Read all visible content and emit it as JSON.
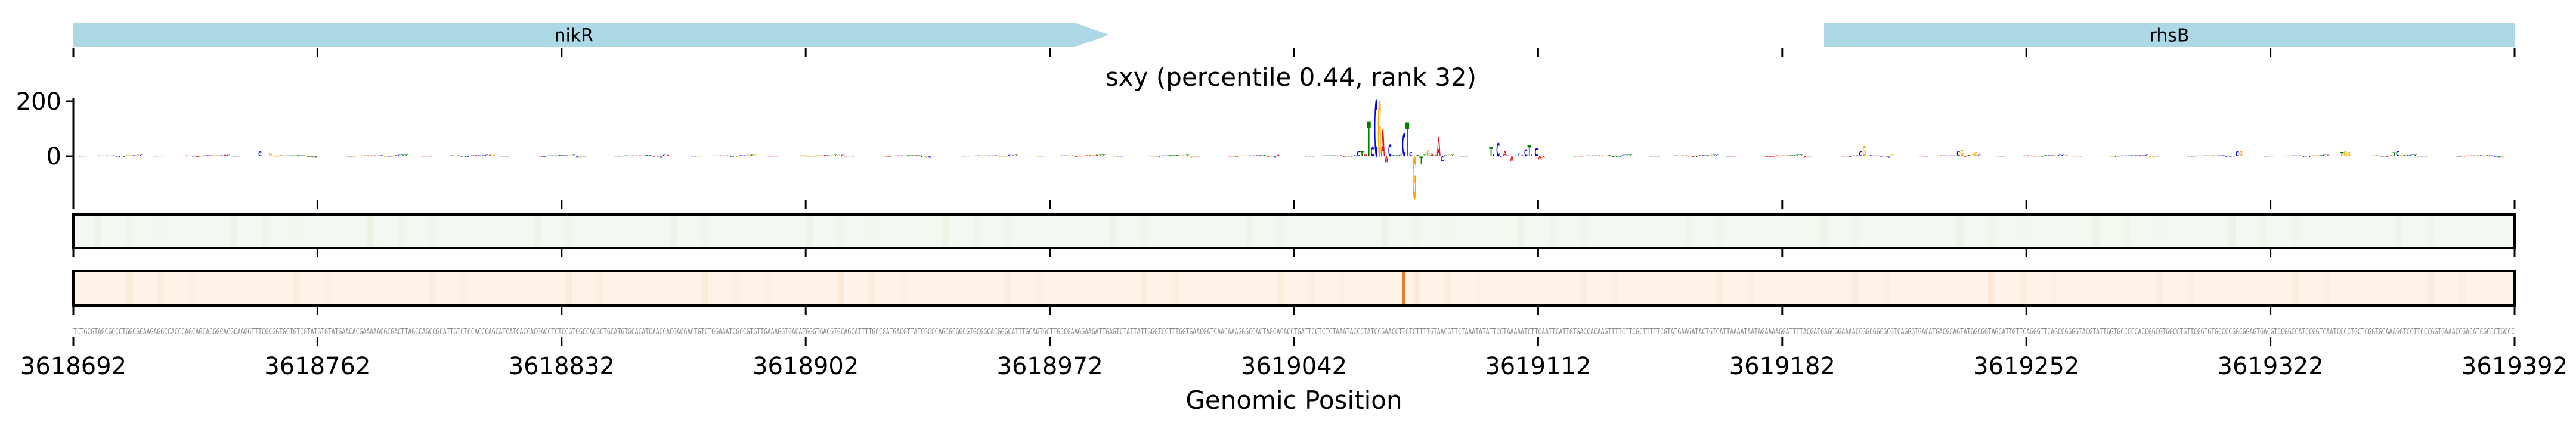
{
  "chart_data": {
    "type": "sequence-logo",
    "title": "sxy (percentile 0.44, rank 32)",
    "xlabel": "Genomic Position",
    "ylabel": "",
    "xlim": [
      3618692,
      3619392
    ],
    "xticks": [
      "3618692",
      "3618762",
      "3618832",
      "3618902",
      "3618972",
      "3619042",
      "3619112",
      "3619182",
      "3619252",
      "3619322",
      "3619392"
    ],
    "xtick_values": [
      3618692,
      3618762,
      3618832,
      3618902,
      3618972,
      3619042,
      3619112,
      3619182,
      3619252,
      3619322,
      3619392
    ],
    "ylim": [
      -160,
      225
    ],
    "yticks": [
      "0",
      "200"
    ],
    "ytick_values": [
      0,
      200
    ],
    "genes": [
      {
        "name": "nikR",
        "start": 3618692,
        "body_end": 3618979,
        "end": 3618989,
        "strand": "+"
      },
      {
        "name": "rhsB",
        "start": 3619194,
        "end": 3619392,
        "strand": ""
      }
    ],
    "base_colors": {
      "A": "#e8141a",
      "C": "#0000f0",
      "G": "#ffa500",
      "T": "#008000"
    },
    "gene_color": "#add8e6",
    "sequence": "TCTGCGTAGCGCCCTGGCGCAAGAGGCCACCCAGCAGCACGGCACGCAAGGTTTCGCGGTGCTGTCGTATGTGTATGAACACGAAAAACGCGACTTAGCCAGCCGCATTGTCTCCACCCAGCATCATCACCACGACCTCTCCGTCGCCACGCTGCATGTGCACATCAACCACGACGACTGTCTGGAAATCGCCGTGTTGAAAGGTGACATGGGTGACGTGCAGCATTTTGCCGATGACGTTATCGCCCAGCGCGGCGTGCGGCACGGGCATTTGCAGTGCTTGCCGAAGGAAGATTGAGTCTATTATTGGGTCCTTTGGTGAACGATCAACAAAGGGCCACTAGCACACCTGATTCCTCTCTAAATACCCTATCCGAACCTTCTCTTTTGTAACGTTCTAAATATATTCCTAAAAATCTTCAATTCATTGTGACCACAAGTTTTCTTCGCTTTTTCGTATGAAGATACTGTCATTAAAATAATAGAAAAGGATTTTACGATGAGCGGAAAACCGGCGGCGCGTCAGGGTGACATGACGCAGTATGGCGGTAGCATTGTTCAGGGTTCAGCCGGGGTACGTATTGGTGCCCCCACCGGCGTGGCCTGTTCGGTGTGCCCCGGCGGAGTGACGTCCGGCCATCCGGTCAATCCCCTGCTCGGTGCAAAGGTCCTTCCCGGTGAAACCGACATCGCCCTGCCC",
    "attribution_peaks": [
      [
        53,
        "C",
        17
      ],
      [
        56,
        "G",
        12
      ],
      [
        368,
        "C",
        18
      ],
      [
        369,
        "T",
        18
      ],
      [
        370,
        "A",
        8
      ],
      [
        371,
        "T",
        128
      ],
      [
        372,
        "C",
        32
      ],
      [
        373,
        "C",
        205
      ],
      [
        374,
        "G",
        200
      ],
      [
        375,
        "A",
        98
      ],
      [
        376,
        "A",
        -25
      ],
      [
        377,
        "C",
        43
      ],
      [
        378,
        "T",
        4
      ],
      [
        379,
        "T",
        4
      ],
      [
        380,
        "C",
        6
      ],
      [
        381,
        "C",
        83
      ],
      [
        382,
        "T",
        123
      ],
      [
        383,
        "C",
        15
      ],
      [
        384,
        "G",
        -156
      ],
      [
        385,
        "T",
        4
      ],
      [
        386,
        "T",
        -30
      ],
      [
        387,
        "T",
        5
      ],
      [
        388,
        "G",
        22
      ],
      [
        389,
        "A",
        10
      ],
      [
        391,
        "A",
        69
      ],
      [
        392,
        "C",
        -20
      ],
      [
        406,
        "T",
        33
      ],
      [
        407,
        "C",
        8
      ],
      [
        408,
        "C",
        48
      ],
      [
        410,
        "A",
        20
      ],
      [
        412,
        "A",
        -20
      ],
      [
        414,
        "C",
        10
      ],
      [
        416,
        "C",
        25
      ],
      [
        417,
        "T",
        40
      ],
      [
        418,
        "C",
        8
      ],
      [
        419,
        "C",
        30
      ],
      [
        420,
        "A",
        -12
      ],
      [
        512,
        "C",
        18
      ],
      [
        513,
        "G",
        36
      ],
      [
        540,
        "C",
        20
      ],
      [
        541,
        "G",
        22
      ],
      [
        545,
        "G",
        15
      ],
      [
        620,
        "C",
        18
      ],
      [
        621,
        "G",
        18
      ],
      [
        650,
        "T",
        15
      ],
      [
        651,
        "G",
        18
      ],
      [
        652,
        "G",
        15
      ],
      [
        665,
        "T",
        14
      ],
      [
        666,
        "C",
        20
      ]
    ],
    "tracks": [
      {
        "name": "track-1",
        "color": "#f3f9f0"
      },
      {
        "name": "track-2",
        "color": "#fef3e8",
        "highlight_index": 381,
        "highlight_color": "#f07a2a"
      }
    ]
  }
}
